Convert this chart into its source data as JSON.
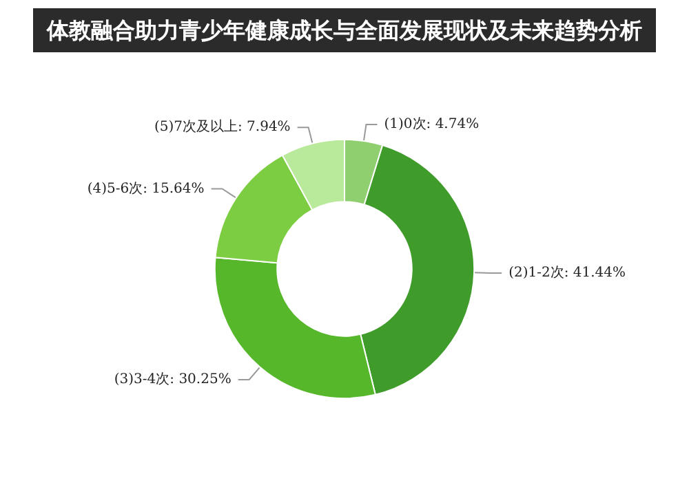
{
  "chart_data": {
    "type": "donut",
    "title": "体教融合助力青少年健康成长与全面发展现状及未来趋势分析",
    "categories": [
      "(1)0次",
      "(2)1-2次",
      "(3)3-4次",
      "(4)5-6次",
      "(5)7次及以上"
    ],
    "values": [
      4.74,
      41.44,
      30.25,
      15.64,
      7.94
    ],
    "value_labels": [
      "4.74%",
      "41.44%",
      "30.25%",
      "15.64%",
      "7.94%"
    ],
    "colors": [
      "#8fcf6f",
      "#3f9b2a",
      "#56b72a",
      "#7ccd42",
      "#b9e99b"
    ],
    "legend": false
  }
}
